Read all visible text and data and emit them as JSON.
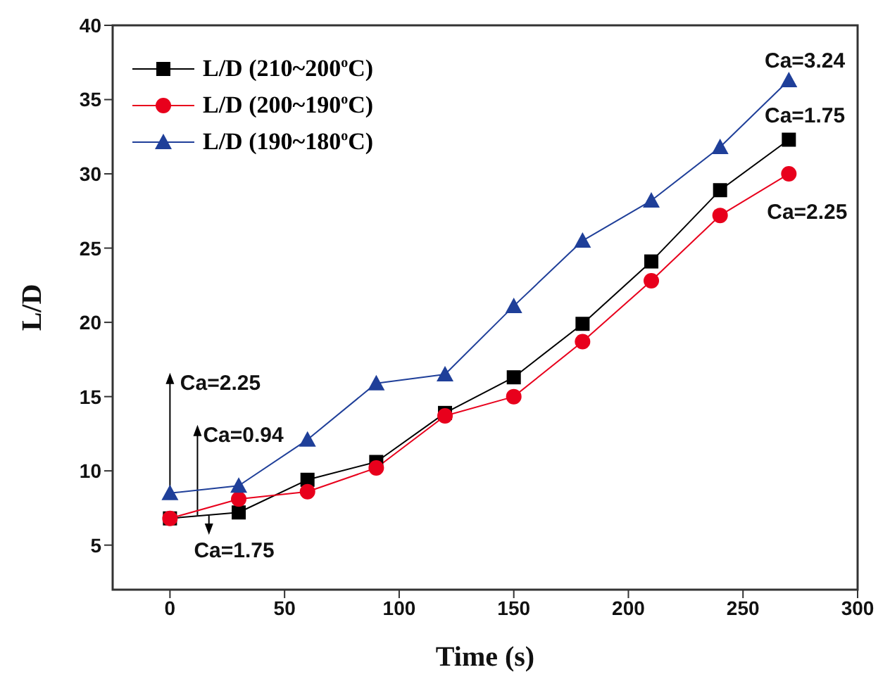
{
  "chart_data": {
    "type": "line",
    "xlabel": "Time (s)",
    "ylabel": "L/D",
    "x": [
      0,
      30,
      60,
      90,
      120,
      150,
      180,
      210,
      240,
      270
    ],
    "series": [
      {
        "name": "L/D (210~200$^{o}$C)",
        "color": "#000000",
        "marker": "square",
        "values": [
          6.8,
          7.2,
          9.4,
          10.6,
          13.9,
          16.3,
          19.9,
          24.1,
          28.9,
          32.3
        ]
      },
      {
        "name": "L/D (200~190$^{o}$C)",
        "color": "#e8001c",
        "marker": "circle",
        "values": [
          6.8,
          8.1,
          8.6,
          10.2,
          13.7,
          15.0,
          18.7,
          22.8,
          27.2,
          30.0
        ]
      },
      {
        "name": "L/D (190~180$^{o}$C)",
        "color": "#1f3f99",
        "marker": "triangle",
        "values": [
          8.5,
          9.0,
          12.1,
          15.9,
          16.5,
          21.1,
          25.5,
          28.2,
          31.8,
          36.3
        ]
      }
    ],
    "xlim": [
      -25,
      300
    ],
    "xticks": [
      0,
      50,
      100,
      150,
      200,
      250,
      300
    ],
    "ylim": [
      2,
      40
    ],
    "yticks": [
      5,
      10,
      15,
      20,
      25,
      30,
      35,
      40
    ],
    "grid": false,
    "legend": "top left",
    "line_style": "solid",
    "annotations": [
      {
        "text": "Ca=2.25",
        "x": 0,
        "y": 8.5
      },
      {
        "text": "Ca=0.94",
        "x": 12,
        "y": 7.0
      },
      {
        "text": "Ca=1.75",
        "x": 17,
        "y": 7.0
      },
      "Ca=3.24",
      "Ca=1.75",
      "Ca=2.25"
    ]
  }
}
